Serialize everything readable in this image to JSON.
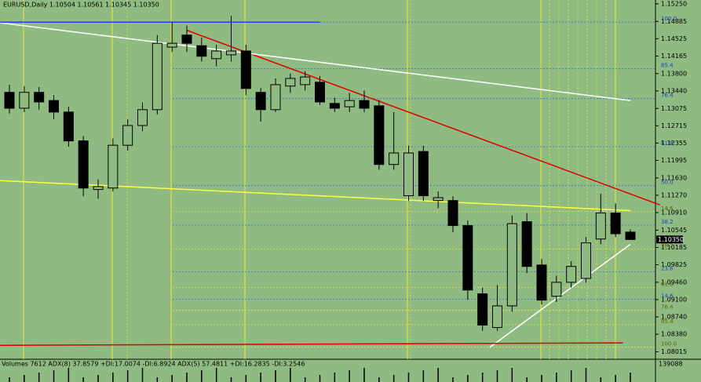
{
  "chart_data": {
    "type": "candlestick",
    "title": "EURUSD,Daily  1.10504 1.10561 1.10345 1.10350",
    "open": [
      1.1341,
      1.1308,
      1.1341,
      1.1324,
      1.13,
      1.124,
      1.1139,
      1.1142,
      1.1231,
      1.1272,
      1.1305,
      1.1435,
      1.146,
      1.1438,
      1.1411,
      1.1419,
      1.1427,
      1.1341,
      1.1305,
      1.1354,
      1.1357,
      1.1362,
      1.1318,
      1.1311,
      1.1324,
      1.1313,
      1.1191,
      1.1126,
      1.1218,
      1.1116,
      1.1116,
      1.1064,
      1.0922,
      1.0852,
      1.0897,
      1.1072,
      1.0982,
      1.0917,
      1.0946,
      1.0954,
      1.1036,
      1.109,
      1.10504
    ],
    "high": [
      1.1357,
      1.1354,
      1.1352,
      1.1335,
      1.1311,
      1.125,
      1.116,
      1.1245,
      1.1285,
      1.132,
      1.146,
      1.1487,
      1.148,
      1.1455,
      1.144,
      1.15,
      1.144,
      1.135,
      1.137,
      1.138,
      1.1385,
      1.1375,
      1.133,
      1.134,
      1.1345,
      1.1325,
      1.13,
      1.123,
      1.123,
      1.1135,
      1.1125,
      1.1075,
      1.0935,
      1.094,
      1.1085,
      1.109,
      1.0995,
      1.096,
      1.099,
      1.104,
      1.113,
      1.111,
      1.10561
    ],
    "low": [
      1.1297,
      1.13,
      1.1305,
      1.1285,
      1.1228,
      1.1125,
      1.112,
      1.1135,
      1.122,
      1.126,
      1.1295,
      1.1425,
      1.1425,
      1.1405,
      1.1395,
      1.1405,
      1.1335,
      1.128,
      1.13,
      1.134,
      1.1345,
      1.1315,
      1.13,
      1.13,
      1.13,
      1.118,
      1.118,
      1.1115,
      1.1115,
      1.11,
      1.105,
      1.091,
      1.0845,
      1.0845,
      1.0885,
      1.0965,
      1.09,
      1.0905,
      1.0935,
      1.0945,
      1.1025,
      1.104,
      1.10345
    ],
    "close": [
      1.1308,
      1.1341,
      1.1321,
      1.13,
      1.124,
      1.1142,
      1.1145,
      1.1231,
      1.1272,
      1.1305,
      1.1443,
      1.1443,
      1.1443,
      1.1416,
      1.1427,
      1.1427,
      1.1349,
      1.1305,
      1.1357,
      1.137,
      1.1373,
      1.1321,
      1.1308,
      1.1324,
      1.1308,
      1.1191,
      1.1215,
      1.1215,
      1.1126,
      1.1122,
      1.1064,
      1.093,
      1.0857,
      1.0897,
      1.1068,
      1.0979,
      1.0909,
      1.0946,
      1.0979,
      1.1028,
      1.109,
      1.1047,
      1.1035
    ],
    "up_color": "#8fbb82",
    "down_color": "#000000",
    "ylim": [
      1.0786,
      1.1533
    ],
    "yticks": [
      {
        "value": 1.1525,
        "label": "1.15250"
      },
      {
        "value": 1.14885,
        "label": "1.14885"
      },
      {
        "value": 1.14525,
        "label": "1.14525"
      },
      {
        "value": 1.14165,
        "label": "1.14165"
      },
      {
        "value": 1.138,
        "label": "1.13800"
      },
      {
        "value": 1.1344,
        "label": "1.13440"
      },
      {
        "value": 1.13075,
        "label": "1.13075"
      },
      {
        "value": 1.12715,
        "label": "1.12715"
      },
      {
        "value": 1.12355,
        "label": "1.12355"
      },
      {
        "value": 1.11995,
        "label": "1.11995"
      },
      {
        "value": 1.1163,
        "label": "1.11630"
      },
      {
        "value": 1.1127,
        "label": "1.11270"
      },
      {
        "value": 1.1091,
        "label": "1.10910"
      },
      {
        "value": 1.10545,
        "label": "1.10545"
      },
      {
        "value": 1.10185,
        "label": "1.10185"
      },
      {
        "value": 1.09825,
        "label": "1.09825"
      },
      {
        "value": 1.0946,
        "label": "1.09460"
      },
      {
        "value": 1.091,
        "label": "1.09100"
      },
      {
        "value": 1.0874,
        "label": "1.08740"
      },
      {
        "value": 1.0838,
        "label": "1.08380"
      },
      {
        "value": 1.08015,
        "label": "1.08015"
      }
    ],
    "last_price": {
      "value": 1.1035,
      "label": "1.10350"
    },
    "fib_sets": [
      {
        "color": "#3d6fd6",
        "levels": [
          {
            "label": "100.0",
            "price": 1.1487
          },
          {
            "label": "85.4",
            "price": 1.139
          },
          {
            "label": "76.4",
            "price": 1.1328
          },
          {
            "label": "61.8",
            "price": 1.1228
          },
          {
            "label": "50.0",
            "price": 1.1147
          },
          {
            "label": "38.2",
            "price": 1.1065
          },
          {
            "label": "23.6",
            "price": 1.0968
          },
          {
            "label": "14.6",
            "price": 1.0911
          }
        ]
      },
      {
        "color": "#e8e830",
        "levels": [
          {
            "label": "14.6",
            "price": 1.1093
          },
          {
            "label": "38.2",
            "price": 1.1015
          },
          {
            "label": "61.8",
            "price": 1.0935
          },
          {
            "label": "76.4",
            "price": 1.0888
          },
          {
            "label": "85.4",
            "price": 1.0858
          },
          {
            "label": "100.0",
            "price": 1.0811
          }
        ]
      }
    ],
    "trendlines": [
      {
        "color": "#e00000",
        "from": [
          12,
          1.147
        ],
        "to": [
          44,
          1.1107
        ]
      },
      {
        "color": "#ffffff",
        "from": [
          -1,
          1.1487
        ],
        "to": [
          42,
          1.1324
        ]
      },
      {
        "color": "#ffff40",
        "from": [
          -1,
          1.1158
        ],
        "to": [
          42,
          1.1095
        ]
      },
      {
        "color": "#ffffff",
        "from": [
          32.5,
          1.0811
        ],
        "to": [
          42,
          1.1025
        ]
      },
      {
        "color": "#e00000",
        "from": [
          -1,
          1.0815
        ],
        "to": [
          41.5,
          1.082
        ]
      },
      {
        "color": "#2040ff",
        "from": [
          -1,
          1.1487
        ],
        "to": [
          21,
          1.1487
        ]
      }
    ],
    "indicator_label": "Volumes 7612  ADX(8) 37.8579 +DI:17.0074 -DI:6.8924  ADX(5) 57.4811 +DI:16.2835 -DI:3.2546",
    "indicator_scale_label": "139088"
  }
}
